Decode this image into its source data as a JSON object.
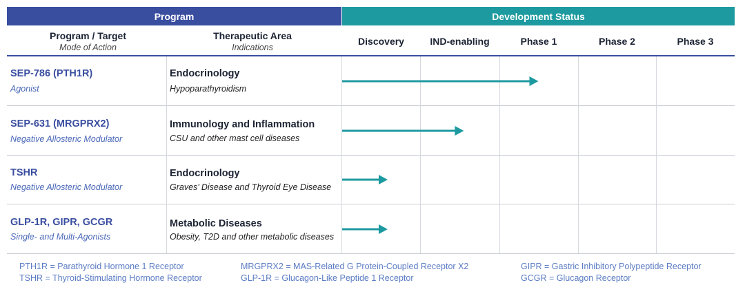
{
  "header": {
    "program": "Program",
    "development_status": "Development Status"
  },
  "columns": {
    "program_target": "Program / Target",
    "mode_of_action": "Mode of Action",
    "therapeutic_area": "Therapeutic Area",
    "indications": "Indications"
  },
  "chart_data": {
    "type": "bar",
    "title": "Development Status",
    "stages": [
      "Discovery",
      "IND-enabling",
      "Phase 1",
      "Phase 2",
      "Phase 3"
    ],
    "stage_scale": "stage units: 0 = start of Discovery, 1 = end of Discovery, 5 = end of Phase 3",
    "xlim": [
      0,
      5
    ],
    "series": [
      {
        "program": "SEP-786 (PTH1R)",
        "moa": "Agonist",
        "area": "Endocrinology",
        "indication": "Hypoparathyroidism",
        "progress": 2.5
      },
      {
        "program": "SEP-631 (MRGPRX2)",
        "moa": "Negative Allosteric Modulator",
        "area": "Immunology and Inflammation",
        "indication": "CSU and other mast cell diseases",
        "progress": 1.55
      },
      {
        "program": "TSHR",
        "moa": "Negative Allosteric Modulator",
        "area": "Endocrinology",
        "indication": "Graves’ Disease and Thyroid Eye Disease",
        "progress": 0.58
      },
      {
        "program": "GLP-1R, GIPR, GCGR",
        "moa": "Single- and Multi-Agonists",
        "area": "Metabolic Diseases",
        "indication": "Obesity, T2D and other metabolic diseases",
        "progress": 0.58
      }
    ],
    "arrow_color": "#1d9aa0"
  },
  "legend": [
    "PTH1R = Parathyroid Hormone 1 Receptor",
    "TSHR = Thyroid-Stimulating Hormone Receptor",
    "MRGPRX2 = MAS-Related G Protein-Coupled Receptor X2",
    "GLP-1R = Glucagon-Like Peptide 1 Receptor",
    "GIPR = Gastric Inhibitory Polypeptide Receptor",
    "GCGR = Glucagon Receptor"
  ]
}
